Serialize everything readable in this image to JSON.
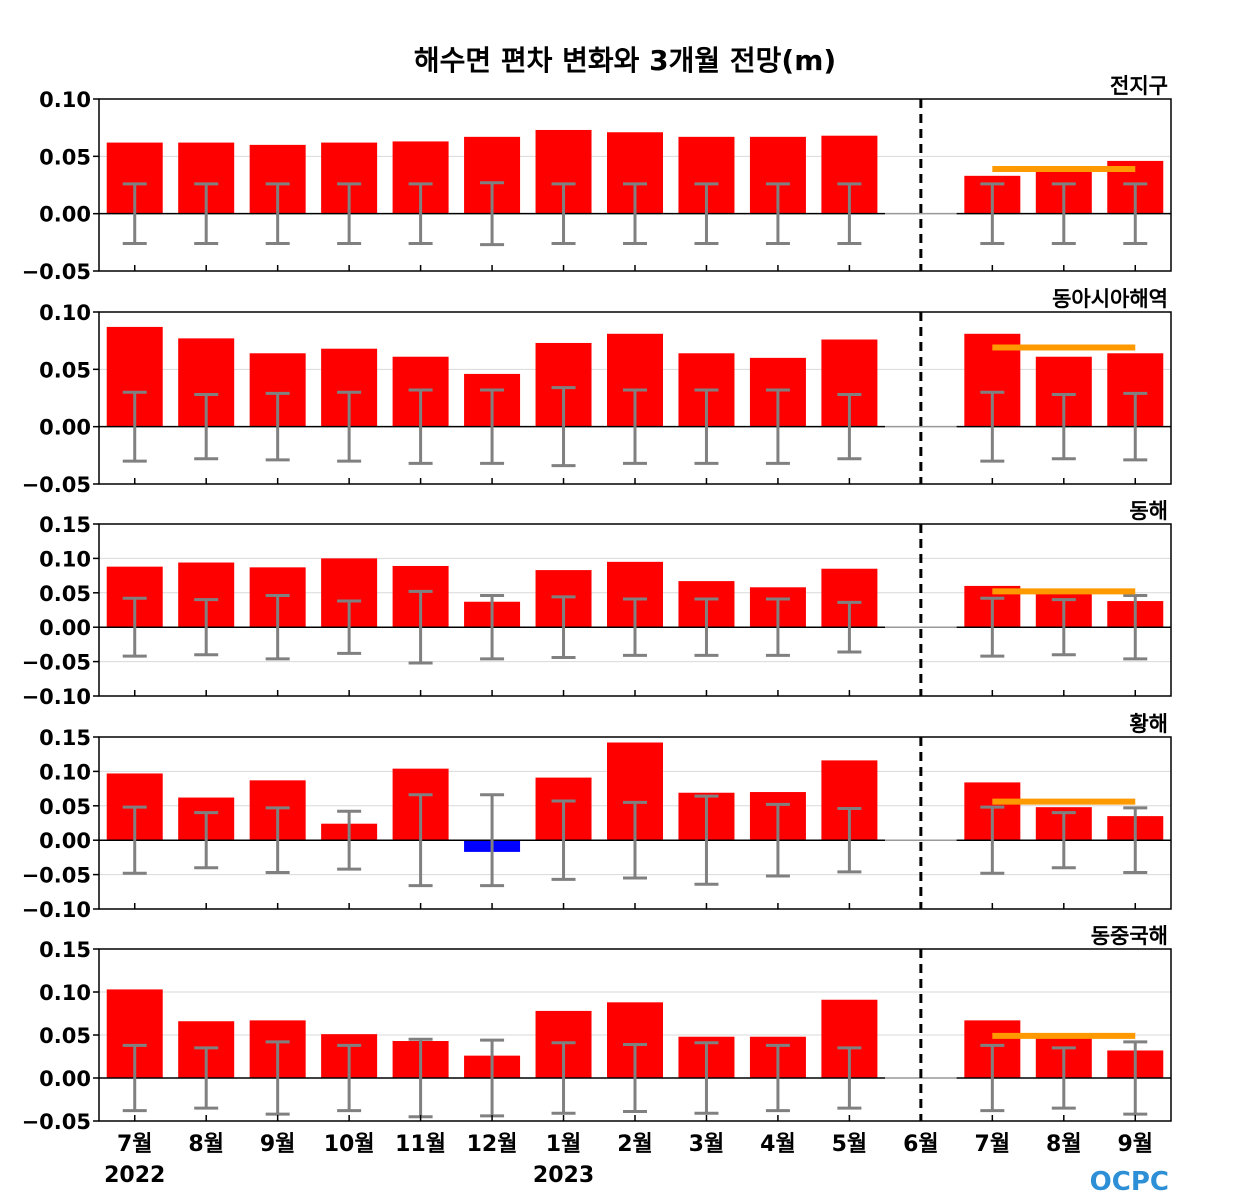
{
  "chart_data": {
    "type": "bar",
    "title": "해수면 편차 변화와 3개월 전망(m)",
    "categories": [
      "7월",
      "8월",
      "9월",
      "10월",
      "11월",
      "12월",
      "1월",
      "2월",
      "3월",
      "4월",
      "5월",
      "6월",
      "7월",
      "8월",
      "9월"
    ],
    "year_labels": [
      {
        "index": 0,
        "label": "2022"
      },
      {
        "index": 6,
        "label": "2023"
      }
    ],
    "forecast_divider_after_index": 11,
    "colors": {
      "positive": "#ff0000",
      "negative": "#0000ff",
      "error_bar": "#808080",
      "forecast_mean": "#ff9900",
      "divider": "#000000"
    },
    "panels": [
      {
        "name": "전지구",
        "ylim": [
          -0.05,
          0.1
        ],
        "yticks": [
          "0.10",
          "0.05",
          "0.00",
          "−0.05"
        ],
        "ytick_values": [
          0.1,
          0.05,
          0.0,
          -0.05
        ],
        "values": [
          0.062,
          0.062,
          0.06,
          0.062,
          0.063,
          0.067,
          0.073,
          0.071,
          0.067,
          0.067,
          0.068,
          0.0,
          0.033,
          0.04,
          0.046
        ],
        "error_bars": [
          0.026,
          0.026,
          0.026,
          0.026,
          0.026,
          0.027,
          0.026,
          0.026,
          0.026,
          0.026,
          0.026,
          null,
          0.026,
          0.026,
          0.026
        ],
        "forecast_mean": 0.039
      },
      {
        "name": "동아시아해역",
        "ylim": [
          -0.05,
          0.1
        ],
        "yticks": [
          "0.10",
          "0.05",
          "0.00",
          "−0.05"
        ],
        "ytick_values": [
          0.1,
          0.05,
          0.0,
          -0.05
        ],
        "values": [
          0.087,
          0.077,
          0.064,
          0.068,
          0.061,
          0.046,
          0.073,
          0.081,
          0.064,
          0.06,
          0.076,
          0.0,
          0.081,
          0.061,
          0.064
        ],
        "error_bars": [
          0.03,
          0.028,
          0.029,
          0.03,
          0.032,
          0.032,
          0.034,
          0.032,
          0.032,
          0.032,
          0.028,
          null,
          0.03,
          0.028,
          0.029
        ],
        "forecast_mean": 0.069
      },
      {
        "name": "동해",
        "ylim": [
          -0.1,
          0.15
        ],
        "yticks": [
          "0.15",
          "0.10",
          "0.05",
          "0.00",
          "−0.05",
          "−0.10"
        ],
        "ytick_values": [
          0.15,
          0.1,
          0.05,
          0.0,
          -0.05,
          -0.1
        ],
        "values": [
          0.088,
          0.094,
          0.087,
          0.1,
          0.089,
          0.037,
          0.083,
          0.095,
          0.067,
          0.058,
          0.085,
          0.0,
          0.06,
          0.055,
          0.038
        ],
        "error_bars": [
          0.042,
          0.04,
          0.046,
          0.038,
          0.052,
          0.046,
          0.044,
          0.041,
          0.041,
          0.041,
          0.036,
          null,
          0.042,
          0.04,
          0.046
        ],
        "forecast_mean": 0.052
      },
      {
        "name": "황해",
        "ylim": [
          -0.1,
          0.15
        ],
        "yticks": [
          "0.15",
          "0.10",
          "0.05",
          "0.00",
          "−0.05",
          "−0.10"
        ],
        "ytick_values": [
          0.15,
          0.1,
          0.05,
          0.0,
          -0.05,
          -0.1
        ],
        "values": [
          0.097,
          0.062,
          0.087,
          0.024,
          0.104,
          -0.017,
          0.091,
          0.142,
          0.069,
          0.07,
          0.116,
          0.0,
          0.084,
          0.048,
          0.035
        ],
        "error_bars": [
          0.048,
          0.04,
          0.047,
          0.042,
          0.066,
          0.066,
          0.057,
          0.055,
          0.064,
          0.052,
          0.046,
          null,
          0.048,
          0.04,
          0.047
        ],
        "forecast_mean": 0.056
      },
      {
        "name": "동중국해",
        "ylim": [
          -0.05,
          0.15
        ],
        "yticks": [
          "0.15",
          "0.10",
          "0.05",
          "0.00",
          "−0.05"
        ],
        "ytick_values": [
          0.15,
          0.1,
          0.05,
          0.0,
          -0.05
        ],
        "values": [
          0.103,
          0.066,
          0.067,
          0.051,
          0.043,
          0.026,
          0.078,
          0.088,
          0.048,
          0.048,
          0.091,
          0.0,
          0.067,
          0.048,
          0.032
        ],
        "error_bars": [
          0.038,
          0.035,
          0.042,
          0.038,
          0.045,
          0.044,
          0.041,
          0.039,
          0.041,
          0.038,
          0.035,
          null,
          0.038,
          0.035,
          0.042
        ],
        "forecast_mean": 0.049
      }
    ]
  },
  "logo": {
    "text": "OCPC"
  }
}
